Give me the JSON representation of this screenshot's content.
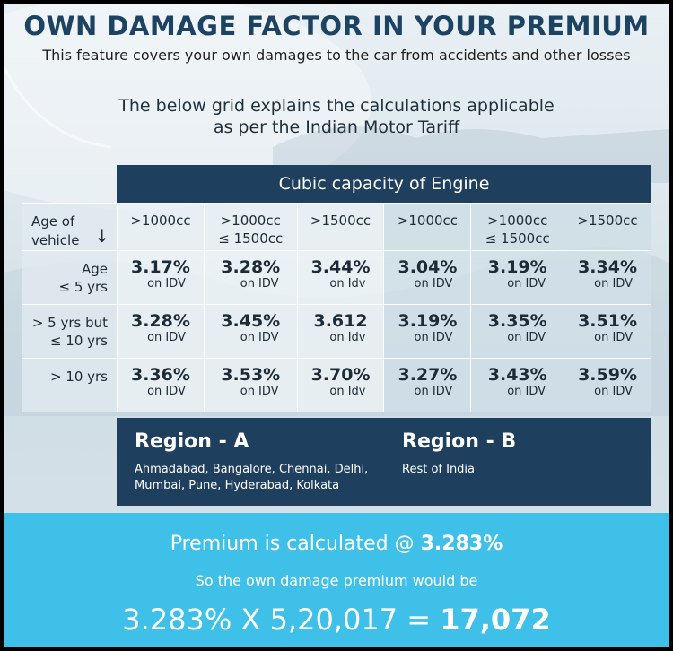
{
  "title": "OWN DAMAGE FACTOR IN YOUR PREMIUM",
  "subtitle": "This feature covers your own damages to the car from accidents and other losses",
  "intro_line1": "The below grid explains the calculations applicable",
  "intro_line2": "as per the Indian Motor Tariff",
  "engine_header": "Cubic capacity of Engine",
  "age_header": {
    "line1": "Age of",
    "line2": "vehicle",
    "arrow": "↓"
  },
  "columns": [
    {
      "line1": ">1000cc",
      "line2": ""
    },
    {
      "line1": ">1000cc",
      "line2": "≤ 1500cc"
    },
    {
      "line1": ">1500cc",
      "line2": ""
    },
    {
      "line1": ">1000cc",
      "line2": ""
    },
    {
      "line1": ">1000cc",
      "line2": "≤ 1500cc"
    },
    {
      "line1": ">1500cc",
      "line2": ""
    }
  ],
  "rows": [
    {
      "age_line1": "Age",
      "age_line2": "≤ 5 yrs",
      "cells": [
        {
          "value": "3.17%",
          "sub": "on IDV"
        },
        {
          "value": "3.28%",
          "sub": "on IDV"
        },
        {
          "value": "3.44%",
          "sub": "on Idv"
        },
        {
          "value": "3.04%",
          "sub": "on IDV"
        },
        {
          "value": "3.19%",
          "sub": "on IDV"
        },
        {
          "value": "3.34%",
          "sub": "on IDV"
        }
      ]
    },
    {
      "age_line1": "> 5 yrs but",
      "age_line2": "≤ 10 yrs",
      "cells": [
        {
          "value": "3.28%",
          "sub": "on IDV"
        },
        {
          "value": "3.45%",
          "sub": "on IDV"
        },
        {
          "value": "3.612",
          "sub": "on Idv"
        },
        {
          "value": "3.19%",
          "sub": "on IDV"
        },
        {
          "value": "3.35%",
          "sub": "on IDV"
        },
        {
          "value": "3.51%",
          "sub": "on IDV"
        }
      ]
    },
    {
      "age_line1": "> 10 yrs",
      "age_line2": "",
      "cells": [
        {
          "value": "3.36%",
          "sub": "on IDV"
        },
        {
          "value": "3.53%",
          "sub": "on IDV"
        },
        {
          "value": "3.70%",
          "sub": "on Idv"
        },
        {
          "value": "3.27%",
          "sub": "on IDV"
        },
        {
          "value": "3.43%",
          "sub": "on IDV"
        },
        {
          "value": "3.59%",
          "sub": "on IDV"
        }
      ]
    }
  ],
  "region_a": {
    "name": "Region - A",
    "cities_line1": "Ahmadabad, Bangalore, Chennai, Delhi,",
    "cities_line2": "Mumbai, Pune, Hyderabad, Kolkata"
  },
  "region_b": {
    "name": "Region - B",
    "cities_line1": "Rest of India"
  },
  "footer": {
    "premium_prefix": "Premium is calculated @ ",
    "premium_rate": "3.283%",
    "own_damage_text": "So the own damage premium would be",
    "formula_prefix": "3.283% X 5,20,017 = ",
    "formula_result": "17,072"
  },
  "colors": {
    "title": "#1d4363",
    "dark_band": "#1f3f5e",
    "footer_bg": "#3fc0e8"
  }
}
